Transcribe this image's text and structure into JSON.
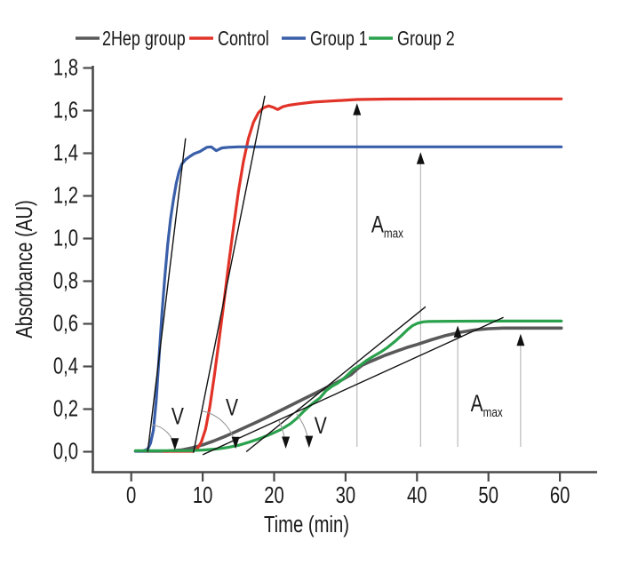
{
  "figure": {
    "kind": "absorbance-kinetics-line-chart"
  },
  "legend": {
    "items": [
      {
        "label": "2Hep group",
        "color": "#595959"
      },
      {
        "label": "Control",
        "color": "#e23328"
      },
      {
        "label": "Group 1",
        "color": "#3a5fa9"
      },
      {
        "label": "Group 2",
        "color": "#2aa14c"
      }
    ]
  },
  "chart_data": {
    "type": "line",
    "title": "",
    "xlabel": "Time (min)",
    "ylabel": "Absorbance (AU)",
    "xlim": [
      0,
      60
    ],
    "ylim": [
      0,
      1.8
    ],
    "grid": false,
    "legend_position": "top",
    "decimal_separator": ",",
    "x_ticks": {
      "values": [
        0,
        10,
        20,
        30,
        40,
        50,
        60
      ],
      "labels": [
        "0",
        "10",
        "20",
        "30",
        "40",
        "50",
        "60"
      ]
    },
    "y_ticks": {
      "values": [
        0,
        0.2,
        0.4,
        0.6,
        0.8,
        1.0,
        1.2,
        1.4,
        1.6,
        1.8
      ],
      "labels": [
        "0,0",
        "0,2",
        "0,4",
        "0,6",
        "0,8",
        "1,0",
        "1,2",
        "1,4",
        "1,6",
        "1,8"
      ]
    },
    "series": [
      {
        "name": "2Hep group",
        "color": "#595959",
        "width": 3.6,
        "plateau": 0.58,
        "points": [
          [
            0.6,
            0.003
          ],
          [
            5,
            0.003
          ],
          [
            7,
            0.008
          ],
          [
            8.5,
            0.018
          ],
          [
            10,
            0.032
          ],
          [
            11.5,
            0.05
          ],
          [
            13,
            0.07
          ],
          [
            14.5,
            0.092
          ],
          [
            16,
            0.115
          ],
          [
            17.5,
            0.138
          ],
          [
            19,
            0.162
          ],
          [
            20.5,
            0.187
          ],
          [
            22,
            0.212
          ],
          [
            23.5,
            0.237
          ],
          [
            25,
            0.262
          ],
          [
            26.5,
            0.287
          ],
          [
            28,
            0.312
          ],
          [
            29.5,
            0.337
          ],
          [
            30.8,
            0.362
          ],
          [
            31.7,
            0.39
          ],
          [
            32.3,
            0.405
          ],
          [
            33.1,
            0.418
          ],
          [
            34.1,
            0.432
          ],
          [
            35.5,
            0.452
          ],
          [
            37,
            0.47
          ],
          [
            38.5,
            0.488
          ],
          [
            40,
            0.503
          ],
          [
            42,
            0.525
          ],
          [
            44,
            0.545
          ],
          [
            46,
            0.56
          ],
          [
            48,
            0.571
          ],
          [
            50,
            0.577
          ],
          [
            52,
            0.58
          ],
          [
            56,
            0.58
          ],
          [
            60.2,
            0.58
          ]
        ]
      },
      {
        "name": "Control",
        "color": "#e23328",
        "width": 3.2,
        "plateau": 1.65,
        "points": [
          [
            4.5,
            0.002
          ],
          [
            8.6,
            0.002
          ],
          [
            9.2,
            0.012
          ],
          [
            9.8,
            0.045
          ],
          [
            10.4,
            0.105
          ],
          [
            11,
            0.21
          ],
          [
            11.6,
            0.35
          ],
          [
            12.2,
            0.5
          ],
          [
            12.9,
            0.68
          ],
          [
            13.6,
            0.87
          ],
          [
            14.3,
            1.05
          ],
          [
            15,
            1.22
          ],
          [
            15.7,
            1.36
          ],
          [
            16.4,
            1.47
          ],
          [
            17.1,
            1.545
          ],
          [
            17.8,
            1.59
          ],
          [
            18.5,
            1.613
          ],
          [
            19.2,
            1.622
          ],
          [
            19.9,
            1.615
          ],
          [
            20.5,
            1.605
          ],
          [
            21.2,
            1.618
          ],
          [
            22,
            1.625
          ],
          [
            23.5,
            1.632
          ],
          [
            25.5,
            1.64
          ],
          [
            28,
            1.645
          ],
          [
            31.6,
            1.652
          ],
          [
            36,
            1.654
          ],
          [
            45,
            1.655
          ],
          [
            60.2,
            1.655
          ]
        ]
      },
      {
        "name": "Group 1",
        "color": "#3a5fa9",
        "width": 3.2,
        "plateau": 1.43,
        "points": [
          [
            0.6,
            0.003
          ],
          [
            1.6,
            0.003
          ],
          [
            2.3,
            0.012
          ],
          [
            2.7,
            0.04
          ],
          [
            3.1,
            0.1
          ],
          [
            3.5,
            0.24
          ],
          [
            3.9,
            0.45
          ],
          [
            4.3,
            0.65
          ],
          [
            4.7,
            0.82
          ],
          [
            5.1,
            0.97
          ],
          [
            5.5,
            1.09
          ],
          [
            5.9,
            1.18
          ],
          [
            6.3,
            1.26
          ],
          [
            6.7,
            1.315
          ],
          [
            7.1,
            1.35
          ],
          [
            7.6,
            1.37
          ],
          [
            8.2,
            1.385
          ],
          [
            8.8,
            1.398
          ],
          [
            9.6,
            1.408
          ],
          [
            10.6,
            1.428
          ],
          [
            11.2,
            1.43
          ],
          [
            11.9,
            1.412
          ],
          [
            12.7,
            1.425
          ],
          [
            13.6,
            1.428
          ],
          [
            15,
            1.43
          ],
          [
            20,
            1.43
          ],
          [
            30,
            1.43
          ],
          [
            45,
            1.43
          ],
          [
            60.2,
            1.43
          ]
        ]
      },
      {
        "name": "Group 2",
        "color": "#2aa14c",
        "width": 3.2,
        "plateau": 0.61,
        "points": [
          [
            0.6,
            0.005
          ],
          [
            8,
            0.005
          ],
          [
            10,
            0.008
          ],
          [
            12,
            0.013
          ],
          [
            13.5,
            0.02
          ],
          [
            15,
            0.03
          ],
          [
            16.5,
            0.045
          ],
          [
            18,
            0.062
          ],
          [
            19.5,
            0.082
          ],
          [
            21,
            0.105
          ],
          [
            22.3,
            0.132
          ],
          [
            23.2,
            0.157
          ],
          [
            24,
            0.185
          ],
          [
            24.8,
            0.21
          ],
          [
            25.6,
            0.232
          ],
          [
            26.4,
            0.252
          ],
          [
            27.3,
            0.287
          ],
          [
            28.1,
            0.307
          ],
          [
            28.9,
            0.322
          ],
          [
            29.7,
            0.342
          ],
          [
            30.5,
            0.367
          ],
          [
            31.1,
            0.387
          ],
          [
            31.9,
            0.402
          ],
          [
            32.9,
            0.427
          ],
          [
            33.9,
            0.448
          ],
          [
            34.9,
            0.467
          ],
          [
            35.9,
            0.49
          ],
          [
            36.9,
            0.517
          ],
          [
            37.9,
            0.547
          ],
          [
            38.7,
            0.573
          ],
          [
            39.4,
            0.592
          ],
          [
            40.1,
            0.603
          ],
          [
            40.9,
            0.609
          ],
          [
            41.6,
            0.611
          ],
          [
            45,
            0.612
          ],
          [
            52,
            0.613
          ],
          [
            60.2,
            0.613
          ]
        ]
      }
    ],
    "annotations": {
      "tangent_lines": [
        {
          "series": "Group 1",
          "from": [
            2.3,
            0.0
          ],
          "to": [
            7.6,
            1.47
          ]
        },
        {
          "series": "Control",
          "from": [
            8.7,
            -0.005
          ],
          "to": [
            18.7,
            1.67
          ]
        },
        {
          "series": "2Hep group",
          "from": [
            10.0,
            -0.014
          ],
          "to": [
            52.1,
            0.63
          ]
        },
        {
          "series": "Group 2",
          "from": [
            16.1,
            0.0
          ],
          "to": [
            41.2,
            0.68
          ]
        }
      ],
      "amax_arrows": [
        {
          "t": 31.6,
          "from_a": 0.023,
          "to_a": 1.635,
          "series": "Control"
        },
        {
          "t": 40.5,
          "from_a": 0.023,
          "to_a": 1.405,
          "series": "Group 1"
        },
        {
          "t": 45.7,
          "from_a": 0.023,
          "to_a": 0.592,
          "series": "Group 2"
        },
        {
          "t": 54.5,
          "from_a": 0.023,
          "to_a": 0.553,
          "series": "2Hep group"
        }
      ],
      "amax_labels": [
        {
          "text": "A",
          "sub": "max",
          "t": 33.6,
          "a": 1.03
        },
        {
          "text": "A",
          "sub": "max",
          "t": 47.5,
          "a": 0.19
        }
      ],
      "v_labels": [
        {
          "text": "V",
          "t": 6.5,
          "a": 0.13
        },
        {
          "text": "V",
          "t": 14.1,
          "a": 0.17
        },
        {
          "text": "V",
          "t": 26.5,
          "a": 0.085
        }
      ],
      "angle_arcs": [
        {
          "center": [
            2.3,
            0.0
          ],
          "radius_px": 31,
          "start_deg": -80,
          "end_deg": -9
        },
        {
          "center": [
            8.7,
            -0.005
          ],
          "radius_px": 48,
          "start_deg": -78,
          "end_deg": -9
        },
        {
          "center": [
            10.0,
            -0.014
          ],
          "radius_px": 94,
          "start_deg": -24,
          "end_deg": -6
        },
        {
          "center": [
            16.1,
            0.0
          ],
          "radius_px": 71,
          "start_deg": -37,
          "end_deg": -6
        }
      ]
    }
  }
}
